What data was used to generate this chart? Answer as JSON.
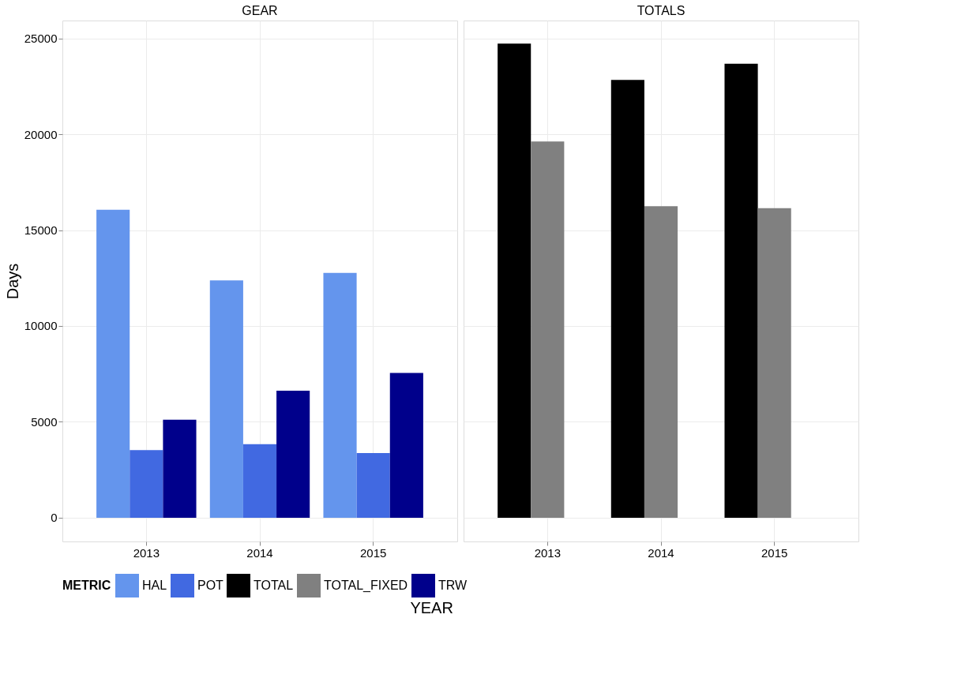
{
  "chart_data": [
    {
      "type": "bar",
      "title": "GEAR",
      "ylabel": "Days",
      "xlabel": "YEAR",
      "legend_title": "METRIC",
      "legend": "bottom",
      "grid": true,
      "categories": [
        "2013",
        "2014",
        "2015"
      ],
      "ylim": [
        -1240,
        25930
      ],
      "yticks": [
        0,
        5000,
        10000,
        15000,
        20000,
        25000
      ],
      "series": [
        {
          "name": "HAL",
          "color": "#6495ed",
          "values": [
            16060,
            12380,
            12770
          ]
        },
        {
          "name": "POT",
          "color": "#4169e1",
          "values": [
            3520,
            3830,
            3370
          ]
        },
        {
          "name": "TRW",
          "color": "#00008b",
          "values": [
            5110,
            6620,
            7550
          ]
        }
      ]
    },
    {
      "type": "bar",
      "title": "TOTALS",
      "grid": true,
      "tick_labels": "x",
      "legend": "bottom",
      "categories": [
        "2013",
        "2014",
        "2015"
      ],
      "ylim": [
        -1240,
        25930
      ],
      "yticks": [
        0,
        5000,
        10000,
        15000,
        20000,
        25000
      ],
      "series": [
        {
          "name": "TOTAL",
          "color": "#000000",
          "values": [
            24730,
            22830,
            23680
          ]
        },
        {
          "name": "TOTAL_FIXED",
          "color": "#808080",
          "values": [
            19620,
            16250,
            16140
          ]
        }
      ]
    }
  ]
}
